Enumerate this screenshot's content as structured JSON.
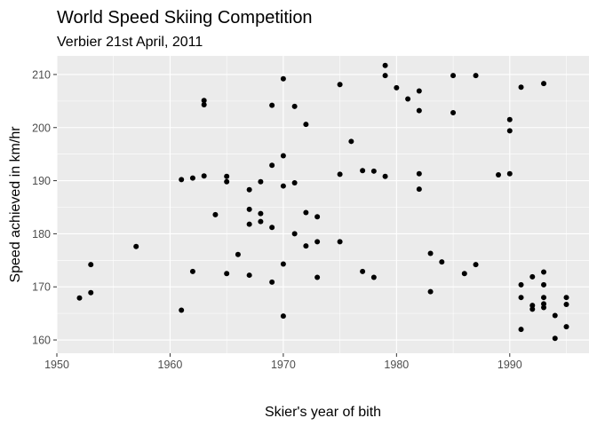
{
  "chart_data": {
    "type": "scatter",
    "title": "World Speed Skiing Competition",
    "subtitle": "Verbier 21st April, 2011",
    "xlabel": "Skier's year of bith",
    "ylabel": "Speed achieved in km/hr",
    "xlim": [
      1950,
      1997
    ],
    "ylim": [
      157.5,
      213.5
    ],
    "xticks": [
      1950,
      1960,
      1970,
      1980,
      1990
    ],
    "yticks": [
      160,
      170,
      180,
      190,
      200,
      210
    ],
    "grid": true,
    "legend": "none",
    "colors": {
      "panel": "#ebebeb",
      "grid": "#ffffff",
      "point": "#000000",
      "tick_text": "#4d4d4d",
      "tick_mark": "#333333"
    },
    "points": [
      [
        1952,
        167.9
      ],
      [
        1953,
        168.9
      ],
      [
        1953,
        174.2
      ],
      [
        1957,
        177.6
      ],
      [
        1961,
        190.2
      ],
      [
        1961,
        165.6
      ],
      [
        1962,
        190.5
      ],
      [
        1962,
        172.9
      ],
      [
        1963,
        205.1
      ],
      [
        1963,
        204.3
      ],
      [
        1963,
        190.9
      ],
      [
        1964,
        183.6
      ],
      [
        1965,
        190.8
      ],
      [
        1965,
        189.8
      ],
      [
        1965,
        172.5
      ],
      [
        1966,
        176.1
      ],
      [
        1967,
        188.3
      ],
      [
        1967,
        184.6
      ],
      [
        1967,
        181.8
      ],
      [
        1967,
        172.2
      ],
      [
        1968,
        189.8
      ],
      [
        1968,
        183.8
      ],
      [
        1968,
        182.3
      ],
      [
        1969,
        204.2
      ],
      [
        1969,
        192.9
      ],
      [
        1969,
        181.2
      ],
      [
        1969,
        170.9
      ],
      [
        1970,
        209.2
      ],
      [
        1970,
        194.7
      ],
      [
        1970,
        189.0
      ],
      [
        1970,
        174.3
      ],
      [
        1970,
        164.5
      ],
      [
        1971,
        204.0
      ],
      [
        1971,
        189.6
      ],
      [
        1971,
        180.0
      ],
      [
        1972,
        200.6
      ],
      [
        1972,
        184.0
      ],
      [
        1972,
        177.7
      ],
      [
        1973,
        183.2
      ],
      [
        1973,
        178.5
      ],
      [
        1973,
        171.8
      ],
      [
        1975,
        208.1
      ],
      [
        1975,
        191.2
      ],
      [
        1975,
        178.5
      ],
      [
        1976,
        197.4
      ],
      [
        1977,
        191.9
      ],
      [
        1977,
        172.9
      ],
      [
        1978,
        191.8
      ],
      [
        1978,
        171.8
      ],
      [
        1979,
        211.7
      ],
      [
        1979,
        209.8
      ],
      [
        1979,
        190.8
      ],
      [
        1980,
        207.5
      ],
      [
        1981,
        205.4
      ],
      [
        1982,
        206.9
      ],
      [
        1982,
        203.2
      ],
      [
        1982,
        191.3
      ],
      [
        1982,
        188.4
      ],
      [
        1983,
        176.3
      ],
      [
        1983,
        169.1
      ],
      [
        1984,
        174.7
      ],
      [
        1985,
        209.8
      ],
      [
        1985,
        202.8
      ],
      [
        1986,
        172.5
      ],
      [
        1987,
        209.8
      ],
      [
        1987,
        174.2
      ],
      [
        1989,
        191.1
      ],
      [
        1990,
        201.5
      ],
      [
        1990,
        199.4
      ],
      [
        1990,
        191.3
      ],
      [
        1991,
        207.6
      ],
      [
        1991,
        170.4
      ],
      [
        1991,
        168.0
      ],
      [
        1991,
        162.0
      ],
      [
        1992,
        171.9
      ],
      [
        1992,
        166.5
      ],
      [
        1992,
        165.8
      ],
      [
        1993,
        208.3
      ],
      [
        1993,
        172.8
      ],
      [
        1993,
        170.4
      ],
      [
        1993,
        168.0
      ],
      [
        1993,
        166.8
      ],
      [
        1993,
        166.1
      ],
      [
        1994,
        164.6
      ],
      [
        1994,
        160.3
      ],
      [
        1995,
        168.0
      ],
      [
        1995,
        166.7
      ],
      [
        1995,
        162.5
      ]
    ]
  }
}
